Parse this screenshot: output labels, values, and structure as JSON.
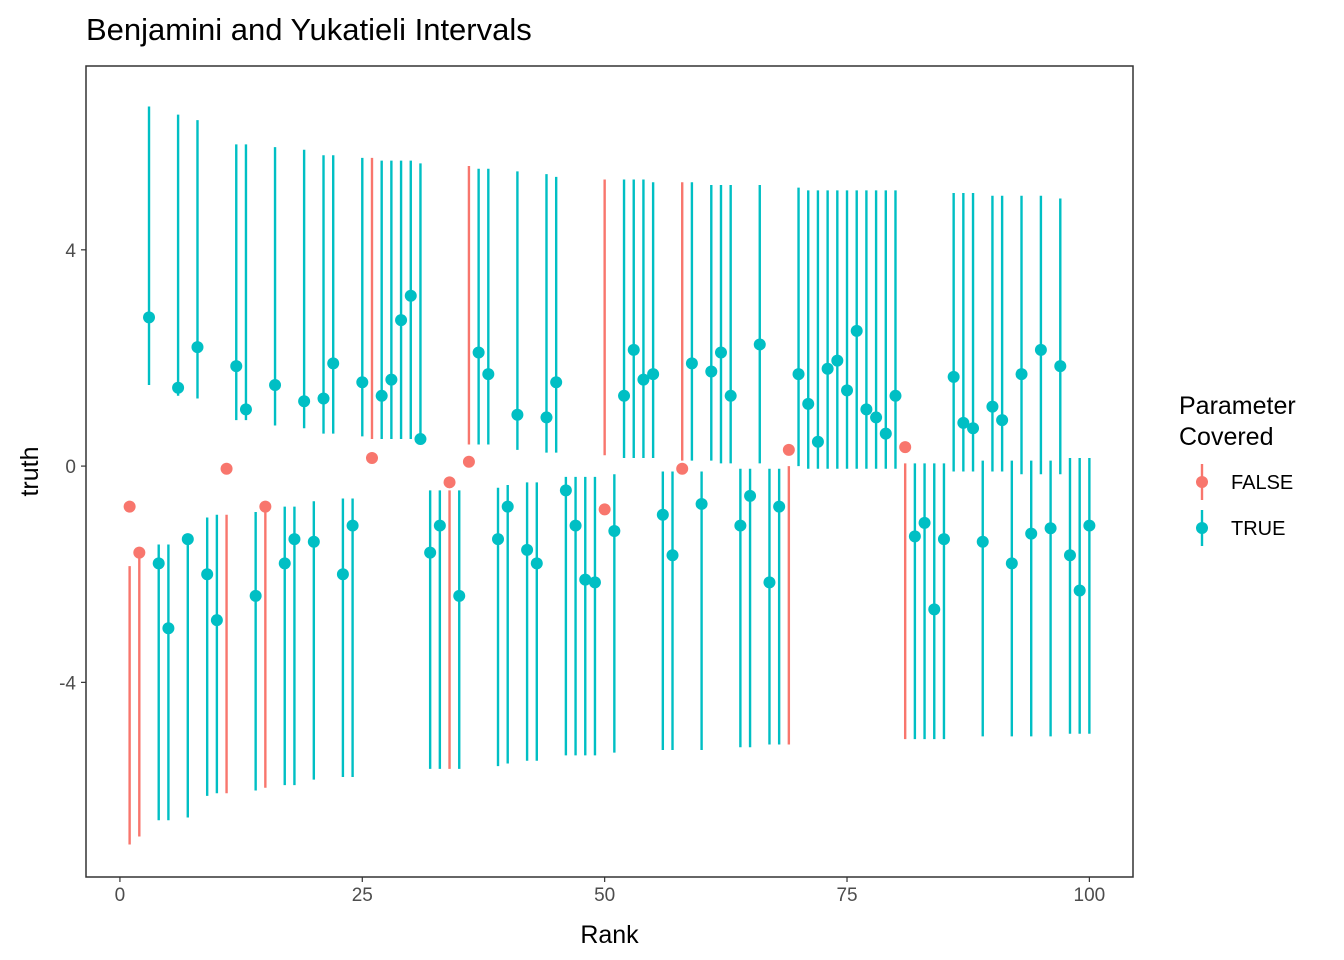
{
  "chart_data": {
    "type": "scatter",
    "title": "Benjamini and Yukatieli Intervals",
    "xlabel": "Rank",
    "ylabel": "truth",
    "xlim": [
      -3.5,
      104.5
    ],
    "ylim": [
      -7.6,
      7.4
    ],
    "x_ticks": [
      0,
      25,
      50,
      75,
      100
    ],
    "x_tick_labels": [
      "0",
      "25",
      "50",
      "75",
      "100"
    ],
    "y_ticks": [
      -4,
      0,
      4
    ],
    "y_tick_labels": [
      "-4",
      "0",
      "4"
    ],
    "grid": false,
    "legend": {
      "title_lines": [
        "Parameter",
        "Covered"
      ],
      "position": "right",
      "entries": [
        {
          "label": "FALSE",
          "color": "#F8766D"
        },
        {
          "label": "TRUE",
          "color": "#00BFC4"
        }
      ]
    },
    "colors": {
      "FALSE": "#F8766D",
      "TRUE": "#00BFC4"
    },
    "points": [
      {
        "rank": 1,
        "truth": -0.75,
        "lower": -7.0,
        "upper": -1.85,
        "covered": "FALSE"
      },
      {
        "rank": 2,
        "truth": -1.6,
        "lower": -6.85,
        "upper": -1.6,
        "covered": "FALSE"
      },
      {
        "rank": 3,
        "truth": 2.75,
        "lower": 1.5,
        "upper": 6.65,
        "covered": "TRUE"
      },
      {
        "rank": 4,
        "truth": -1.8,
        "lower": -6.55,
        "upper": -1.45,
        "covered": "TRUE"
      },
      {
        "rank": 5,
        "truth": -3.0,
        "lower": -6.55,
        "upper": -1.45,
        "covered": "TRUE"
      },
      {
        "rank": 6,
        "truth": 1.45,
        "lower": 1.3,
        "upper": 6.5,
        "covered": "TRUE"
      },
      {
        "rank": 7,
        "truth": -1.35,
        "lower": -6.5,
        "upper": -1.35,
        "covered": "TRUE"
      },
      {
        "rank": 8,
        "truth": 2.2,
        "lower": 1.25,
        "upper": 6.4,
        "covered": "TRUE"
      },
      {
        "rank": 9,
        "truth": -2.0,
        "lower": -6.1,
        "upper": -0.95,
        "covered": "TRUE"
      },
      {
        "rank": 10,
        "truth": -2.85,
        "lower": -6.05,
        "upper": -0.9,
        "covered": "TRUE"
      },
      {
        "rank": 11,
        "truth": -0.05,
        "lower": -6.05,
        "upper": -0.9,
        "covered": "FALSE"
      },
      {
        "rank": 12,
        "truth": 1.85,
        "lower": 0.85,
        "upper": 5.95,
        "covered": "TRUE"
      },
      {
        "rank": 13,
        "truth": 1.05,
        "lower": 0.85,
        "upper": 5.95,
        "covered": "TRUE"
      },
      {
        "rank": 14,
        "truth": -2.4,
        "lower": -6.0,
        "upper": -0.85,
        "covered": "TRUE"
      },
      {
        "rank": 15,
        "truth": -0.75,
        "lower": -5.95,
        "upper": -0.8,
        "covered": "FALSE"
      },
      {
        "rank": 16,
        "truth": 1.5,
        "lower": 0.75,
        "upper": 5.9,
        "covered": "TRUE"
      },
      {
        "rank": 17,
        "truth": -1.8,
        "lower": -5.9,
        "upper": -0.75,
        "covered": "TRUE"
      },
      {
        "rank": 18,
        "truth": -1.35,
        "lower": -5.9,
        "upper": -0.75,
        "covered": "TRUE"
      },
      {
        "rank": 19,
        "truth": 1.2,
        "lower": 0.7,
        "upper": 5.85,
        "covered": "TRUE"
      },
      {
        "rank": 20,
        "truth": -1.4,
        "lower": -5.8,
        "upper": -0.65,
        "covered": "TRUE"
      },
      {
        "rank": 21,
        "truth": 1.25,
        "lower": 0.6,
        "upper": 5.75,
        "covered": "TRUE"
      },
      {
        "rank": 22,
        "truth": 1.9,
        "lower": 0.6,
        "upper": 5.75,
        "covered": "TRUE"
      },
      {
        "rank": 23,
        "truth": -2.0,
        "lower": -5.75,
        "upper": -0.6,
        "covered": "TRUE"
      },
      {
        "rank": 24,
        "truth": -1.1,
        "lower": -5.75,
        "upper": -0.6,
        "covered": "TRUE"
      },
      {
        "rank": 25,
        "truth": 1.55,
        "lower": 0.55,
        "upper": 5.7,
        "covered": "TRUE"
      },
      {
        "rank": 26,
        "truth": 0.15,
        "lower": 0.5,
        "upper": 5.7,
        "covered": "FALSE"
      },
      {
        "rank": 27,
        "truth": 1.3,
        "lower": 0.5,
        "upper": 5.65,
        "covered": "TRUE"
      },
      {
        "rank": 28,
        "truth": 1.6,
        "lower": 0.5,
        "upper": 5.65,
        "covered": "TRUE"
      },
      {
        "rank": 29,
        "truth": 2.7,
        "lower": 0.5,
        "upper": 5.65,
        "covered": "TRUE"
      },
      {
        "rank": 30,
        "truth": 3.15,
        "lower": 0.5,
        "upper": 5.65,
        "covered": "TRUE"
      },
      {
        "rank": 31,
        "truth": 0.5,
        "lower": 0.45,
        "upper": 5.6,
        "covered": "TRUE"
      },
      {
        "rank": 32,
        "truth": -1.6,
        "lower": -5.6,
        "upper": -0.45,
        "covered": "TRUE"
      },
      {
        "rank": 33,
        "truth": -1.1,
        "lower": -5.6,
        "upper": -0.45,
        "covered": "TRUE"
      },
      {
        "rank": 34,
        "truth": -0.3,
        "lower": -5.6,
        "upper": -0.45,
        "covered": "FALSE"
      },
      {
        "rank": 35,
        "truth": -2.4,
        "lower": -5.6,
        "upper": -0.45,
        "covered": "TRUE"
      },
      {
        "rank": 36,
        "truth": 0.08,
        "lower": 0.4,
        "upper": 5.55,
        "covered": "FALSE"
      },
      {
        "rank": 37,
        "truth": 2.1,
        "lower": 0.4,
        "upper": 5.5,
        "covered": "TRUE"
      },
      {
        "rank": 38,
        "truth": 1.7,
        "lower": 0.4,
        "upper": 5.5,
        "covered": "TRUE"
      },
      {
        "rank": 39,
        "truth": -1.35,
        "lower": -5.55,
        "upper": -0.4,
        "covered": "TRUE"
      },
      {
        "rank": 40,
        "truth": -0.75,
        "lower": -5.5,
        "upper": -0.35,
        "covered": "TRUE"
      },
      {
        "rank": 41,
        "truth": 0.95,
        "lower": 0.3,
        "upper": 5.45,
        "covered": "TRUE"
      },
      {
        "rank": 42,
        "truth": -1.55,
        "lower": -5.45,
        "upper": -0.3,
        "covered": "TRUE"
      },
      {
        "rank": 43,
        "truth": -1.8,
        "lower": -5.45,
        "upper": -0.3,
        "covered": "TRUE"
      },
      {
        "rank": 44,
        "truth": 0.9,
        "lower": 0.25,
        "upper": 5.4,
        "covered": "TRUE"
      },
      {
        "rank": 45,
        "truth": 1.55,
        "lower": 0.25,
        "upper": 5.35,
        "covered": "TRUE"
      },
      {
        "rank": 46,
        "truth": -0.45,
        "lower": -5.35,
        "upper": -0.2,
        "covered": "TRUE"
      },
      {
        "rank": 47,
        "truth": -1.1,
        "lower": -5.35,
        "upper": -0.2,
        "covered": "TRUE"
      },
      {
        "rank": 48,
        "truth": -2.1,
        "lower": -5.35,
        "upper": -0.2,
        "covered": "TRUE"
      },
      {
        "rank": 49,
        "truth": -2.15,
        "lower": -5.35,
        "upper": -0.2,
        "covered": "TRUE"
      },
      {
        "rank": 50,
        "truth": -0.8,
        "lower": 0.2,
        "upper": 5.3,
        "covered": "FALSE"
      },
      {
        "rank": 51,
        "truth": -1.2,
        "lower": -5.3,
        "upper": -0.15,
        "covered": "TRUE"
      },
      {
        "rank": 52,
        "truth": 1.3,
        "lower": 0.15,
        "upper": 5.3,
        "covered": "TRUE"
      },
      {
        "rank": 53,
        "truth": 2.15,
        "lower": 0.15,
        "upper": 5.3,
        "covered": "TRUE"
      },
      {
        "rank": 54,
        "truth": 1.6,
        "lower": 0.15,
        "upper": 5.3,
        "covered": "TRUE"
      },
      {
        "rank": 55,
        "truth": 1.7,
        "lower": 0.15,
        "upper": 5.25,
        "covered": "TRUE"
      },
      {
        "rank": 56,
        "truth": -0.9,
        "lower": -5.25,
        "upper": -0.1,
        "covered": "TRUE"
      },
      {
        "rank": 57,
        "truth": -1.65,
        "lower": -5.25,
        "upper": -0.1,
        "covered": "TRUE"
      },
      {
        "rank": 58,
        "truth": -0.05,
        "lower": 0.1,
        "upper": 5.25,
        "covered": "FALSE"
      },
      {
        "rank": 59,
        "truth": 1.9,
        "lower": 0.1,
        "upper": 5.25,
        "covered": "TRUE"
      },
      {
        "rank": 60,
        "truth": -0.7,
        "lower": -5.25,
        "upper": -0.1,
        "covered": "TRUE"
      },
      {
        "rank": 61,
        "truth": 1.75,
        "lower": 0.1,
        "upper": 5.2,
        "covered": "TRUE"
      },
      {
        "rank": 62,
        "truth": 2.1,
        "lower": 0.05,
        "upper": 5.2,
        "covered": "TRUE"
      },
      {
        "rank": 63,
        "truth": 1.3,
        "lower": 0.05,
        "upper": 5.2,
        "covered": "TRUE"
      },
      {
        "rank": 64,
        "truth": -1.1,
        "lower": -5.2,
        "upper": -0.05,
        "covered": "TRUE"
      },
      {
        "rank": 65,
        "truth": -0.55,
        "lower": -5.2,
        "upper": -0.05,
        "covered": "TRUE"
      },
      {
        "rank": 66,
        "truth": 2.25,
        "lower": 0.05,
        "upper": 5.2,
        "covered": "TRUE"
      },
      {
        "rank": 67,
        "truth": -2.15,
        "lower": -5.15,
        "upper": -0.05,
        "covered": "TRUE"
      },
      {
        "rank": 68,
        "truth": -0.75,
        "lower": -5.15,
        "upper": -0.05,
        "covered": "TRUE"
      },
      {
        "rank": 69,
        "truth": 0.3,
        "lower": -5.15,
        "upper": 0.0,
        "covered": "FALSE"
      },
      {
        "rank": 70,
        "truth": 1.7,
        "lower": 0.0,
        "upper": 5.15,
        "covered": "TRUE"
      },
      {
        "rank": 71,
        "truth": 1.15,
        "lower": -0.05,
        "upper": 5.1,
        "covered": "TRUE"
      },
      {
        "rank": 72,
        "truth": 0.45,
        "lower": -0.05,
        "upper": 5.1,
        "covered": "TRUE"
      },
      {
        "rank": 73,
        "truth": 1.8,
        "lower": -0.05,
        "upper": 5.1,
        "covered": "TRUE"
      },
      {
        "rank": 74,
        "truth": 1.95,
        "lower": -0.05,
        "upper": 5.1,
        "covered": "TRUE"
      },
      {
        "rank": 75,
        "truth": 1.4,
        "lower": -0.05,
        "upper": 5.1,
        "covered": "TRUE"
      },
      {
        "rank": 76,
        "truth": 2.5,
        "lower": -0.05,
        "upper": 5.1,
        "covered": "TRUE"
      },
      {
        "rank": 77,
        "truth": 1.05,
        "lower": -0.05,
        "upper": 5.1,
        "covered": "TRUE"
      },
      {
        "rank": 78,
        "truth": 0.9,
        "lower": -0.05,
        "upper": 5.1,
        "covered": "TRUE"
      },
      {
        "rank": 79,
        "truth": 0.6,
        "lower": -0.05,
        "upper": 5.1,
        "covered": "TRUE"
      },
      {
        "rank": 80,
        "truth": 1.3,
        "lower": -0.05,
        "upper": 5.1,
        "covered": "TRUE"
      },
      {
        "rank": 81,
        "truth": 0.35,
        "lower": -5.05,
        "upper": 0.05,
        "covered": "FALSE"
      },
      {
        "rank": 82,
        "truth": -1.3,
        "lower": -5.05,
        "upper": 0.05,
        "covered": "TRUE"
      },
      {
        "rank": 83,
        "truth": -1.05,
        "lower": -5.05,
        "upper": 0.05,
        "covered": "TRUE"
      },
      {
        "rank": 84,
        "truth": -2.65,
        "lower": -5.05,
        "upper": 0.05,
        "covered": "TRUE"
      },
      {
        "rank": 85,
        "truth": -1.35,
        "lower": -5.05,
        "upper": 0.05,
        "covered": "TRUE"
      },
      {
        "rank": 86,
        "truth": 1.65,
        "lower": -0.1,
        "upper": 5.05,
        "covered": "TRUE"
      },
      {
        "rank": 87,
        "truth": 0.8,
        "lower": -0.1,
        "upper": 5.05,
        "covered": "TRUE"
      },
      {
        "rank": 88,
        "truth": 0.7,
        "lower": -0.1,
        "upper": 5.05,
        "covered": "TRUE"
      },
      {
        "rank": 89,
        "truth": -1.4,
        "lower": -5.0,
        "upper": 0.1,
        "covered": "TRUE"
      },
      {
        "rank": 90,
        "truth": 1.1,
        "lower": -0.1,
        "upper": 5.0,
        "covered": "TRUE"
      },
      {
        "rank": 91,
        "truth": 0.85,
        "lower": -0.1,
        "upper": 5.0,
        "covered": "TRUE"
      },
      {
        "rank": 92,
        "truth": -1.8,
        "lower": -5.0,
        "upper": 0.1,
        "covered": "TRUE"
      },
      {
        "rank": 93,
        "truth": 1.7,
        "lower": -0.15,
        "upper": 5.0,
        "covered": "TRUE"
      },
      {
        "rank": 94,
        "truth": -1.25,
        "lower": -5.0,
        "upper": 0.1,
        "covered": "TRUE"
      },
      {
        "rank": 95,
        "truth": 2.15,
        "lower": -0.15,
        "upper": 5.0,
        "covered": "TRUE"
      },
      {
        "rank": 96,
        "truth": -1.15,
        "lower": -5.0,
        "upper": 0.1,
        "covered": "TRUE"
      },
      {
        "rank": 97,
        "truth": 1.85,
        "lower": -0.15,
        "upper": 4.95,
        "covered": "TRUE"
      },
      {
        "rank": 98,
        "truth": -1.65,
        "lower": -4.95,
        "upper": 0.15,
        "covered": "TRUE"
      },
      {
        "rank": 99,
        "truth": -2.3,
        "lower": -4.95,
        "upper": 0.15,
        "covered": "TRUE"
      },
      {
        "rank": 100,
        "truth": -1.1,
        "lower": -4.95,
        "upper": 0.15,
        "covered": "TRUE"
      }
    ]
  }
}
